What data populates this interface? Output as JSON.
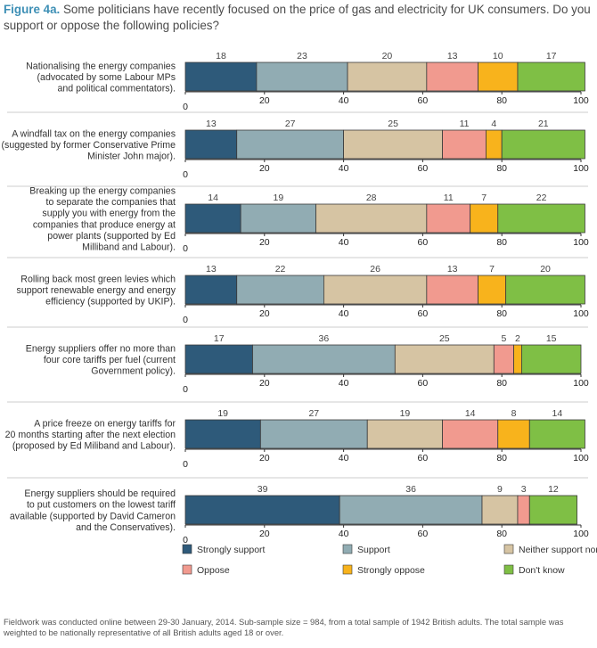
{
  "title": {
    "figure_label": "Figure 4a.",
    "text": "Some politicians have recently focused on the price of gas and electricity for UK consumers. Do you support or oppose the following policies?"
  },
  "footer": "Fieldwork was conducted online between 29-30 January, 2014. Sub-sample size = 984, from a total sample of 1942 British adults. The total sample was weighted to be nationally representative of all British adults aged 18 or over.",
  "colors": {
    "strongly_support": "#2e5a7a",
    "support": "#91acb3",
    "neither": "#d6c4a3",
    "oppose": "#f19a8f",
    "strongly_oppose": "#f8b31c",
    "dont_know": "#7fbf45",
    "axis": "#333333",
    "separator": "#bbbbbb"
  },
  "chart_data": {
    "type": "bar",
    "orientation": "horizontal",
    "stacked": true,
    "xlim": [
      0,
      100
    ],
    "xticks": [
      0,
      20,
      40,
      60,
      80,
      100
    ],
    "grid": false,
    "legend_position": "bottom",
    "series": [
      {
        "name": "Strongly support",
        "key": "strongly_support"
      },
      {
        "name": "Support",
        "key": "support"
      },
      {
        "name": "Neither support nor oppose",
        "key": "neither"
      },
      {
        "name": "Oppose",
        "key": "oppose"
      },
      {
        "name": "Strongly oppose",
        "key": "strongly_oppose"
      },
      {
        "name": "Don't know",
        "key": "dont_know"
      }
    ],
    "categories": [
      {
        "label": "Nationalising the energy companies\n(advocated by some Labour MPs\nand political commentators).",
        "values": [
          18,
          23,
          20,
          13,
          10,
          17
        ]
      },
      {
        "label": "A windfall tax on the energy companies\n(suggested by former Conservative Prime\nMinister John major).",
        "values": [
          13,
          27,
          25,
          11,
          4,
          21
        ]
      },
      {
        "label": "Breaking up the energy companies\nto separate the companies that\nsupply you with energy from the\ncompanies that produce energy at\npower plants (supported by Ed\nMilliband and Labour).",
        "values": [
          14,
          19,
          28,
          11,
          7,
          22
        ]
      },
      {
        "label": "Rolling back most green levies which\nsupport renewable energy and energy\nefficiency (supported by UKIP).",
        "values": [
          13,
          22,
          26,
          13,
          7,
          20
        ]
      },
      {
        "label": "Energy suppliers offer no more than\nfour core tariffs per fuel (current\nGovernment policy).",
        "values": [
          17,
          36,
          25,
          5,
          2,
          15
        ]
      },
      {
        "label": "A price freeze on energy tariffs for\n20 months starting after the next election\n(proposed by Ed Miliband and Labour).",
        "values": [
          19,
          27,
          19,
          14,
          8,
          14
        ]
      },
      {
        "label": "Energy suppliers should be required\nto put customers on the lowest tariff\navailable (supported by David Cameron\nand the Conservatives).",
        "values": [
          39,
          36,
          9,
          3,
          0,
          12
        ]
      }
    ]
  }
}
